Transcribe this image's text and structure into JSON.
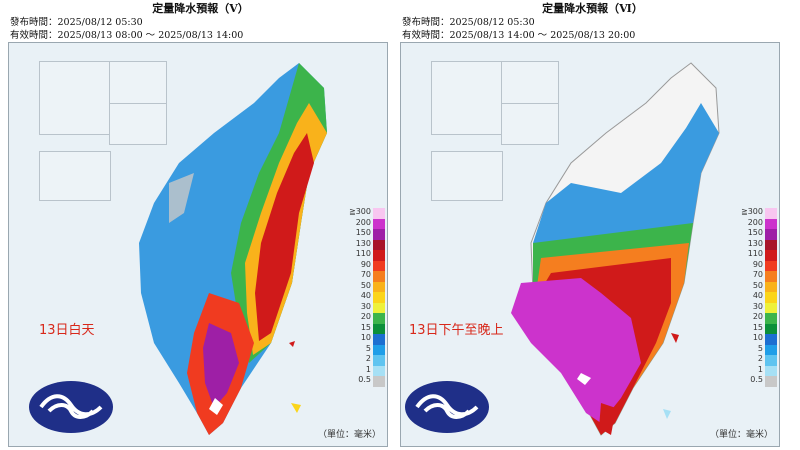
{
  "panels": [
    {
      "title": "定量降水預報（Ⅴ）",
      "issued": "發布時間：2025/08/12 05:30",
      "valid": "有效時間：2025/08/13 08:00 ～ 2025/08/13 14:00",
      "period_label": "13日白天"
    },
    {
      "title": "定量降水預報（Ⅵ）",
      "issued": "發布時間：2025/08/12 05:30",
      "valid": "有效時間：2025/08/13 14:00 ～ 2025/08/13 20:00",
      "period_label": "13日下午至晚上"
    }
  ],
  "legend": {
    "levels": [
      "≧300",
      "200",
      "150",
      "130",
      "110",
      "90",
      "70",
      "50",
      "40",
      "30",
      "20",
      "15",
      "10",
      "5",
      "2",
      "1",
      "0.5"
    ],
    "colors": [
      "#f8c6f0",
      "#cc33cc",
      "#9e1fa6",
      "#a8142a",
      "#d01a1a",
      "#f03b20",
      "#f57e1f",
      "#f9b21b",
      "#fbd51a",
      "#eef13a",
      "#3cb44b",
      "#0b8f3a",
      "#1c6fd1",
      "#1f9ee8",
      "#5fc4f0",
      "#a6e0f5",
      "#c8c8c8"
    ],
    "unit": "（單位：毫米）"
  },
  "map_icons": [
    "cwa-logo-icon",
    "taiwan-map-icon",
    "penghu-inset-icon",
    "kinmen-inset-icon",
    "matsu-inset-icon"
  ]
}
